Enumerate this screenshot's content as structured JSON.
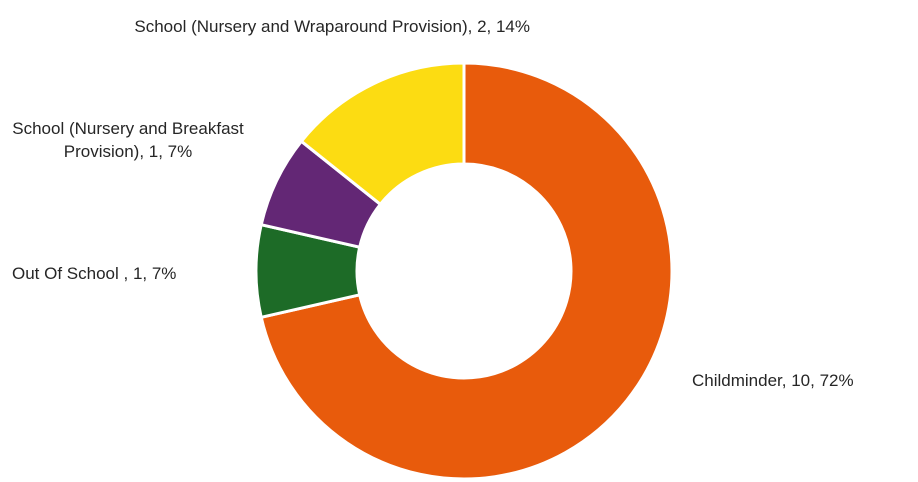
{
  "chart_data": {
    "type": "pie",
    "style": "donut",
    "slices": [
      {
        "name": "Childminder",
        "value": 10,
        "percent": 72,
        "color": "#E85B0C",
        "label": "Childminder, 10, 72%"
      },
      {
        "name": "Out Of School ",
        "value": 1,
        "percent": 7,
        "color": "#1D6B27",
        "label": "Out Of School , 1, 7%"
      },
      {
        "name": "School (Nursery and Breakfast Provision)",
        "value": 1,
        "percent": 7,
        "color": "#632775",
        "label": "School (Nursery and Breakfast Provision), 1, 7%"
      },
      {
        "name": "School (Nursery and Wraparound Provision)",
        "value": 2,
        "percent": 14,
        "color": "#FCDC12",
        "label": "School (Nursery and Wraparound Provision), 2, 14%"
      }
    ],
    "legend": "none",
    "title": ""
  }
}
